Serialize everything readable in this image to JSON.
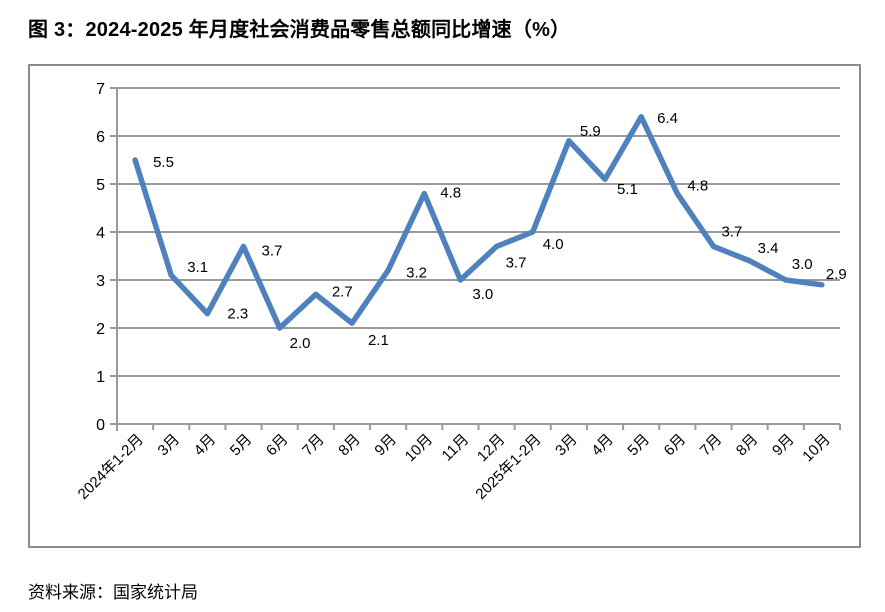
{
  "page": {
    "title": "图 3：2024-2025 年月度社会消费品零售总额同比增速（%）",
    "source": "资料来源：国家统计局"
  },
  "chart_data": {
    "type": "line",
    "title": "图 3：2024-2025 年月度社会消费品零售总额同比增速（%）",
    "categories": [
      "2024年1-2月",
      "3月",
      "4月",
      "5月",
      "6月",
      "7月",
      "8月",
      "9月",
      "10月",
      "11月",
      "12月",
      "2025年1-2月",
      "3月",
      "4月",
      "5月",
      "6月",
      "7月",
      "8月",
      "9月",
      "10月"
    ],
    "values": [
      5.5,
      3.1,
      2.3,
      3.7,
      2.0,
      2.7,
      2.1,
      3.2,
      4.8,
      3.0,
      3.7,
      4.0,
      5.9,
      5.1,
      6.4,
      4.8,
      3.7,
      3.4,
      3.0,
      2.9
    ],
    "point_labels": [
      "5.5",
      "3.1",
      "2.3",
      "3.7",
      "2.0",
      "2.7",
      "2.1",
      "3.2",
      "4.8",
      "3.0",
      "3.7",
      "4.0",
      "5.9",
      "5.1",
      "6.4",
      "4.8",
      "3.7",
      "3.4",
      "3.0",
      "2.9"
    ],
    "xlabel": "",
    "ylabel": "",
    "ylim": [
      0,
      7
    ],
    "yticks": [
      0,
      1,
      2,
      3,
      4,
      5,
      6,
      7
    ],
    "grid": true,
    "legend": "none",
    "data_labels": true,
    "colors": {
      "line": "#4F81BD",
      "grid": "#9a9a9a",
      "frame_border": "#8c8c8c",
      "text": "#000000"
    }
  },
  "source": "资料来源：国家统计局"
}
